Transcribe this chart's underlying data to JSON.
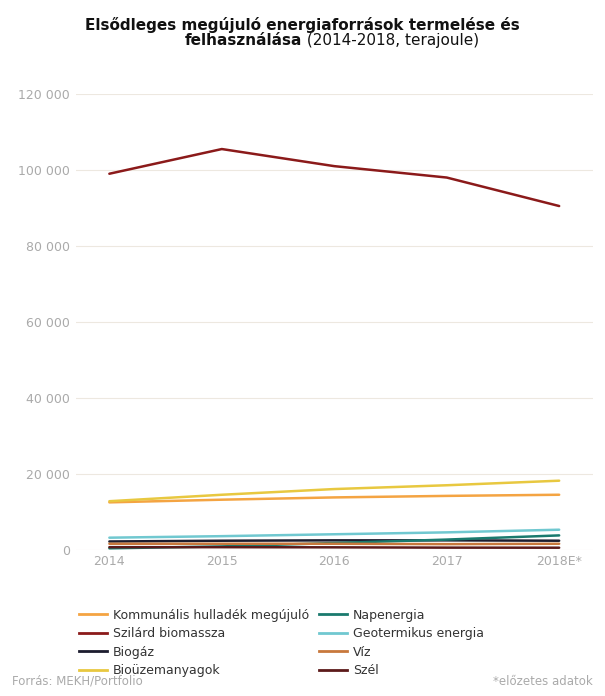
{
  "x_labels": [
    "2014",
    "2015",
    "2016",
    "2017",
    "2018E*"
  ],
  "x_values": [
    0,
    1,
    2,
    3,
    4
  ],
  "series": [
    {
      "name": "Kommunális hulladék megújuló",
      "values": [
        12500,
        13200,
        13800,
        14200,
        14500
      ],
      "color": "#F4A442",
      "linewidth": 1.8
    },
    {
      "name": "Szilárd biomassza",
      "values": [
        99000,
        105500,
        101000,
        98000,
        90500
      ],
      "color": "#8B1A1A",
      "linewidth": 1.8
    },
    {
      "name": "Biogáz",
      "values": [
        2200,
        2400,
        2500,
        2500,
        2400
      ],
      "color": "#1C1C2E",
      "linewidth": 1.8
    },
    {
      "name": "Bioüzemanyagok",
      "values": [
        12800,
        14500,
        16000,
        17000,
        18200
      ],
      "color": "#E8C840",
      "linewidth": 1.8
    },
    {
      "name": "Napenergia",
      "values": [
        400,
        900,
        1800,
        2700,
        3800
      ],
      "color": "#1A7A6E",
      "linewidth": 1.8
    },
    {
      "name": "Geotermikus energia",
      "values": [
        3200,
        3600,
        4100,
        4600,
        5300
      ],
      "color": "#70C8D0",
      "linewidth": 1.8
    },
    {
      "name": "Víz",
      "values": [
        1600,
        1600,
        1600,
        1500,
        1600
      ],
      "color": "#C8783C",
      "linewidth": 1.8
    },
    {
      "name": "Szél",
      "values": [
        700,
        700,
        660,
        580,
        560
      ],
      "color": "#5C1A1A",
      "linewidth": 1.8
    }
  ],
  "ylim": [
    0,
    120000
  ],
  "yticks": [
    0,
    20000,
    40000,
    60000,
    80000,
    100000,
    120000
  ],
  "ytick_labels": [
    "0",
    "20 000",
    "40 000",
    "60 000",
    "80 000",
    "100 000",
    "120 000"
  ],
  "background_color": "#FFFFFF",
  "grid_color": "#EDE8E0",
  "tick_color": "#AAAAAA",
  "title_line1": "Elsődleges megújuló energiaforrások termelése és",
  "title_line2_bold": "felhasználása",
  "title_line2_normal": " (2014-2018, terajoule)",
  "source_text": "Forrás: MEKH/Portfolio",
  "note_text": "*előzetes adatok",
  "legend_left": [
    "Kommunális hulladék megújuló",
    "Biogáz",
    "Napenergia",
    "Víz"
  ],
  "legend_right": [
    "Szilárd biomassza",
    "Bioüzemanyagok",
    "Geotermikus energia",
    "Szél"
  ]
}
